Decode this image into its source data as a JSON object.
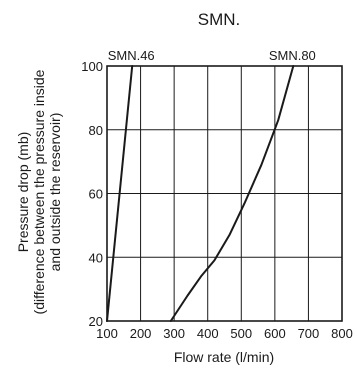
{
  "chart_data": {
    "type": "line",
    "title": "SMN.",
    "xlabel": "Flow rate (l/min)",
    "ylabel_lines": [
      "Pressure drop (mb)",
      "(difference between the pressure inside",
      "and outside the reservoir)"
    ],
    "xlim": [
      100,
      800
    ],
    "ylim": [
      20,
      100
    ],
    "xticks": [
      100,
      200,
      300,
      400,
      500,
      600,
      700,
      800
    ],
    "yticks": [
      20,
      40,
      60,
      80,
      100
    ],
    "grid": true,
    "series": [
      {
        "name": "SMN.46",
        "x": [
          100,
          175
        ],
        "y": [
          20,
          100
        ]
      },
      {
        "name": "SMN.80",
        "x": [
          290,
          340,
          380,
          420,
          465,
          510,
          560,
          610,
          655
        ],
        "y": [
          20,
          28,
          34,
          39,
          47,
          57,
          69,
          83,
          100
        ]
      }
    ]
  }
}
